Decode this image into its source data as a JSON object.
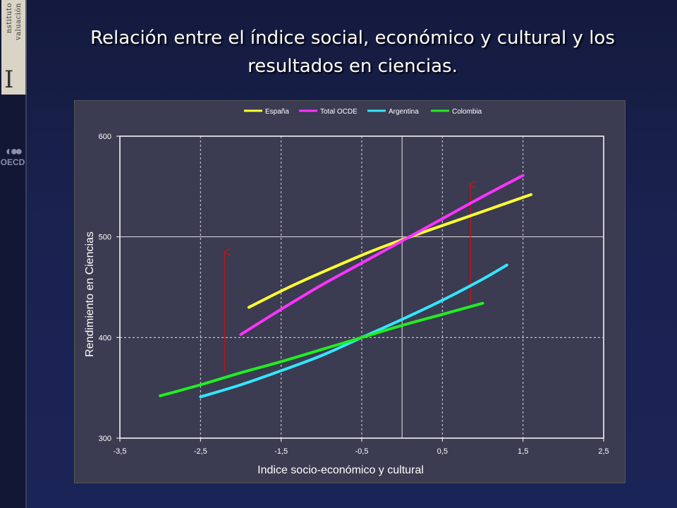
{
  "sidebar": {
    "logo_text_1": "nstituto",
    "logo_text_2": "valuación",
    "logo_de": "de",
    "logo_letter": "I",
    "oecd_label": "OECD",
    "oecd_icon": "oecd-circles-icon"
  },
  "title": {
    "line1": "Relación entre el índice social, económico y cultural y los",
    "line2": "resultados en ciencias."
  },
  "chart_data": {
    "type": "line",
    "xlabel": "Indice socio-económico y cultural",
    "ylabel": "Rendimiento en Ciencias",
    "xlim": [
      -3.5,
      2.5
    ],
    "ylim": [
      300,
      600
    ],
    "xticks": [
      -3.5,
      -2.5,
      -1.5,
      -0.5,
      0.5,
      1.5,
      2.5
    ],
    "xtick_labels": [
      "-3,5",
      "-2,5",
      "-1,5",
      "-0,5",
      "0,5",
      "1,5",
      "2,5"
    ],
    "yticks": [
      300,
      400,
      500,
      600
    ],
    "ytick_labels": [
      "300",
      "400",
      "500",
      "600"
    ],
    "grid": true,
    "legend_position": "top",
    "series": [
      {
        "name": "España",
        "color": "#ffff33",
        "x": [
          -1.9,
          -1.4,
          -0.9,
          -0.4,
          0.1,
          0.6,
          1.1,
          1.6
        ],
        "y": [
          430,
          450,
          468,
          485,
          500,
          514,
          528,
          542
        ]
      },
      {
        "name": "Total OCDE",
        "color": "#ff33ff",
        "x": [
          -2.0,
          -1.5,
          -1.0,
          -0.5,
          0.0,
          0.5,
          1.0,
          1.5
        ],
        "y": [
          403,
          428,
          452,
          474,
          496,
          518,
          540,
          561
        ]
      },
      {
        "name": "Argentina",
        "color": "#33e6ff",
        "x": [
          -2.5,
          -2.0,
          -1.5,
          -1.0,
          -0.5,
          0.0,
          0.5,
          1.0,
          1.3
        ],
        "y": [
          341,
          353,
          367,
          382,
          400,
          418,
          437,
          458,
          472
        ]
      },
      {
        "name": "Colombia",
        "color": "#22ee22",
        "x": [
          -3.0,
          -2.5,
          -2.0,
          -1.5,
          -1.0,
          -0.5,
          0.0,
          0.5,
          1.0
        ],
        "y": [
          342,
          353,
          365,
          376,
          388,
          400,
          412,
          423,
          434
        ]
      }
    ],
    "annotations": [
      {
        "type": "arrow",
        "color": "#cc1111",
        "x": -2.2,
        "y_from": 366,
        "y_to": 485
      },
      {
        "type": "arrow",
        "color": "#cc1111",
        "x": 0.85,
        "y_from": 435,
        "y_to": 552
      }
    ]
  }
}
